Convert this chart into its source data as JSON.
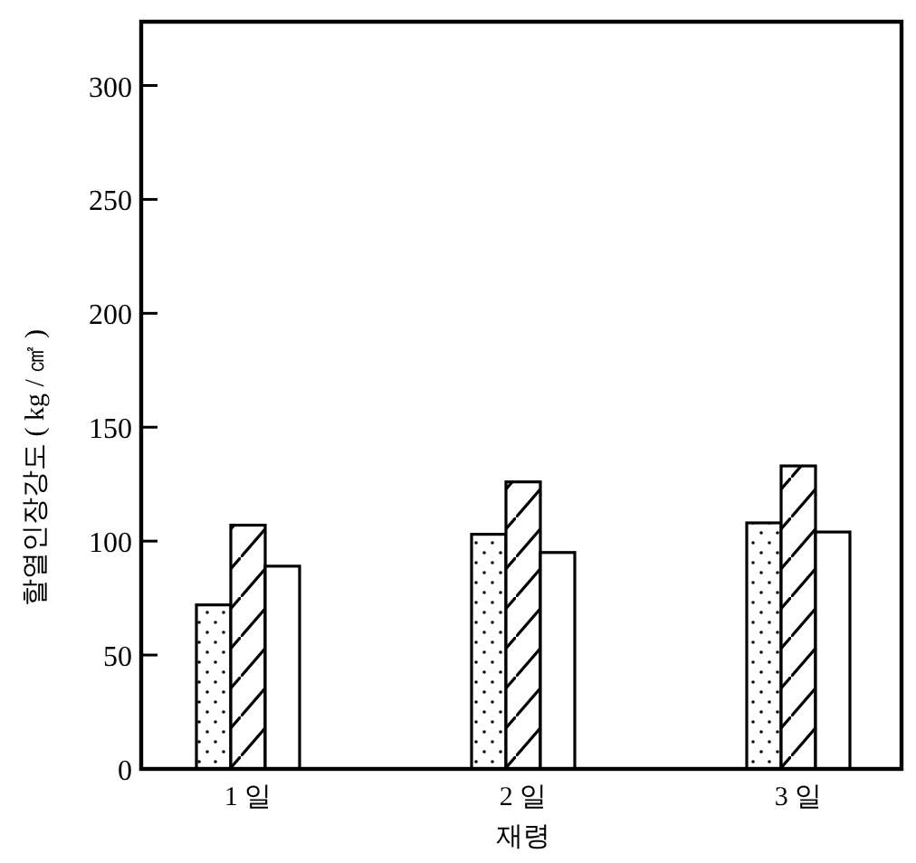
{
  "chart_data": {
    "type": "bar",
    "ylabel": "할열인장강도 ( kg / ㎠ )",
    "xlabel": "재령",
    "categories": [
      "1 일",
      "2 일",
      "3 일"
    ],
    "series": [
      {
        "color": "#ffffff",
        "values": [
          72,
          103,
          108
        ]
      },
      {
        "color": "#ffffff",
        "values": [
          107,
          126,
          133
        ]
      },
      {
        "color": "#ffffff",
        "values": [
          89,
          95,
          104
        ]
      }
    ],
    "ylim": [
      0,
      328
    ],
    "yticks": [
      0,
      50,
      100,
      150,
      200,
      250,
      300
    ],
    "grid": false
  }
}
